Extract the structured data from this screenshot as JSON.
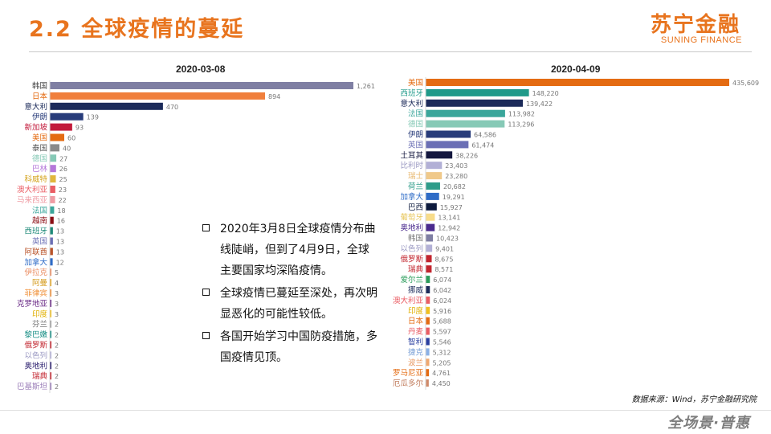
{
  "header": {
    "title": "2.2  全球疫情的蔓延",
    "logo_cn": "苏宁金融",
    "logo_en": "SUNING FINANCE"
  },
  "bullets": [
    "2020年3月8日全球疫情分布曲线陡峭，但到了4月9日，全球主要国家均深陷疫情。",
    "全球疫情已蔓延至深处，再次明显恶化的可能性较低。",
    "各国开始学习中国防疫措施，多国疫情见顶。"
  ],
  "source": "数据来源：Wind，苏宁金融研究院",
  "footer": {
    "slogan": "全场景·普惠"
  },
  "colors": {
    "accent": "#e8741e",
    "text": "#222222",
    "muted": "#7d7d7d"
  },
  "chart_data": [
    {
      "type": "bar",
      "orientation": "horizontal",
      "title": "2020-03-08",
      "categories": [
        "韩国",
        "日本",
        "意大利",
        "伊朗",
        "新加坡",
        "美国",
        "泰国",
        "德国",
        "巴林",
        "科威特",
        "澳大利亚",
        "马来西亚",
        "法国",
        "越南",
        "西班牙",
        "英国",
        "阿联酋",
        "加拿大",
        "伊拉克",
        "阿曼",
        "菲律宾",
        "克罗地亚",
        "印度",
        "芬兰",
        "黎巴嫩",
        "俄罗斯",
        "以色列",
        "奥地利",
        "瑞典",
        "巴基斯坦"
      ],
      "values": [
        1261,
        894,
        470,
        139,
        93,
        60,
        40,
        27,
        26,
        25,
        23,
        22,
        18,
        16,
        13,
        13,
        13,
        12,
        5,
        4,
        3,
        3,
        3,
        2,
        2,
        2,
        2,
        2,
        2,
        2
      ],
      "value_labels": [
        "1,261",
        "894",
        "470",
        "139",
        "93",
        "60",
        "40",
        "27",
        "26",
        "25",
        "23",
        "22",
        "18",
        "16",
        "13",
        "13",
        "13",
        "12",
        "5",
        "4",
        "3",
        "3",
        "3",
        "2",
        "2",
        "2",
        "2",
        "2",
        "2",
        "2"
      ],
      "colors": [
        "#7f7fa3",
        "#f07f3c",
        "#1c2b5a",
        "#283c7a",
        "#c21a3b",
        "#e46b12",
        "#8a8a8a",
        "#86c9b6",
        "#b577d9",
        "#e1b63c",
        "#ea5d64",
        "#ef9ba3",
        "#3aa69b",
        "#8b0e14",
        "#1f8a79",
        "#6b6fb5",
        "#b9542a",
        "#2f6cc7",
        "#ea8a5e",
        "#e5a92a",
        "#f09038",
        "#6a2a86",
        "#f0c021",
        "#9d9d9d",
        "#1a8f86",
        "#c2252e",
        "#b2b0d6",
        "#2a1e6e",
        "#c2252e",
        "#9c7fb9"
      ],
      "label_colors": [
        "#444",
        "#e46b12",
        "#1c2b5a",
        "#283c7a",
        "#c21a3b",
        "#e46b12",
        "#555",
        "#86c9b6",
        "#b577d9",
        "#d4a31c",
        "#ea5d64",
        "#ef9ba3",
        "#3aa69b",
        "#8b0e14",
        "#1f8a79",
        "#6b6fb5",
        "#b9542a",
        "#2f6cc7",
        "#ea8a5e",
        "#d49a1a",
        "#f09038",
        "#6a2a86",
        "#e0b000",
        "#777",
        "#1a8f86",
        "#c2252e",
        "#9a98c2",
        "#2a1e6e",
        "#c2252e",
        "#9c7fb9"
      ],
      "xlim": [
        0,
        1261
      ],
      "grid": false,
      "legend": "none"
    },
    {
      "type": "bar",
      "orientation": "horizontal",
      "title": "2020-04-09",
      "categories": [
        "美国",
        "西班牙",
        "意大利",
        "法国",
        "德国",
        "伊朗",
        "英国",
        "土耳其",
        "比利时",
        "瑞士",
        "荷兰",
        "加拿大",
        "巴西",
        "葡萄牙",
        "奥地利",
        "韩国",
        "以色列",
        "俄罗斯",
        "瑞典",
        "爱尔兰",
        "挪威",
        "澳大利亚",
        "印度",
        "日本",
        "丹麦",
        "智利",
        "捷克",
        "波兰",
        "罗马尼亚",
        "厄瓜多尔"
      ],
      "values": [
        435609,
        148220,
        139422,
        113982,
        113296,
        64586,
        61474,
        38226,
        23403,
        23280,
        20682,
        19291,
        15927,
        13141,
        12942,
        10423,
        9401,
        8675,
        8571,
        6074,
        6042,
        6024,
        5916,
        5688,
        5597,
        5546,
        5312,
        5205,
        4761,
        4450
      ],
      "value_labels": [
        "435,609",
        "148,220",
        "139,422",
        "113,982",
        "113,296",
        "64,586",
        "61,474",
        "38,226",
        "23,403",
        "23,280",
        "20,682",
        "19,291",
        "15,927",
        "13,141",
        "12,942",
        "10,423",
        "9,401",
        "8,675",
        "8,571",
        "6,074",
        "6,042",
        "6,024",
        "5,916",
        "5,688",
        "5,597",
        "5,546",
        "5,312",
        "5,205",
        "4,761",
        "4,450"
      ],
      "colors": [
        "#e46b12",
        "#1f9a8a",
        "#1c2b5a",
        "#3aa69b",
        "#86c9b6",
        "#283c7a",
        "#6b6fb5",
        "#14183f",
        "#b2b0d6",
        "#f0c98a",
        "#2e9c8a",
        "#2f6cc7",
        "#0d1a3d",
        "#f7dc8a",
        "#4a2a8e",
        "#7f7fa3",
        "#b2b0d6",
        "#c2252e",
        "#c2252e",
        "#2a9c5a",
        "#1c2b5a",
        "#ea5d64",
        "#f0c021",
        "#e46b12",
        "#ea5d64",
        "#2a3fa0",
        "#8ab0e6",
        "#f0a870",
        "#e46b12",
        "#d08a6a"
      ],
      "label_colors": [
        "#e46b12",
        "#1f9a8a",
        "#1c2b5a",
        "#3aa69b",
        "#86c9b6",
        "#283c7a",
        "#6b6fb5",
        "#14183f",
        "#9a98c2",
        "#e8b870",
        "#2e9c8a",
        "#2f6cc7",
        "#0d1a3d",
        "#e8c860",
        "#4a2a8e",
        "#777",
        "#9a98c2",
        "#c2252e",
        "#c2252e",
        "#2a9c5a",
        "#1c2b5a",
        "#ea5d64",
        "#e0b000",
        "#e46b12",
        "#ea5d64",
        "#2a3fa0",
        "#7aa0d6",
        "#e89860",
        "#e46b12",
        "#c07a5a"
      ],
      "xlim": [
        0,
        435609
      ],
      "grid": false,
      "legend": "none"
    }
  ]
}
